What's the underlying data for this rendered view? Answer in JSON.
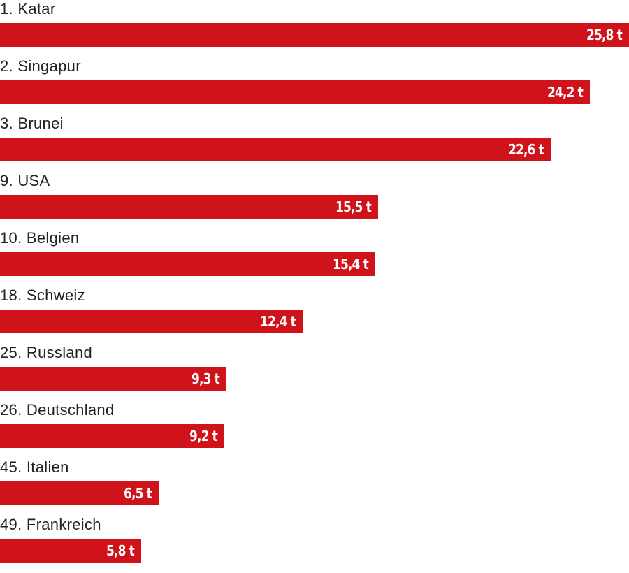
{
  "chart_data": {
    "type": "bar",
    "orientation": "horizontal",
    "categories": [
      "1. Katar",
      "2. Singapur",
      "3. Brunei",
      "9. USA",
      "10. Belgien",
      "18. Schweiz",
      "25. Russland",
      "26. Deutschland",
      "45. Italien",
      "49. Frankreich"
    ],
    "values": [
      25.8,
      24.2,
      22.6,
      15.5,
      15.4,
      12.4,
      9.3,
      9.2,
      6.5,
      5.8
    ],
    "value_labels": [
      "25,8 t",
      "24,2 t",
      "22,6 t",
      "15,5 t",
      "15,4 t",
      "12,4 t",
      "9,3 t",
      "9,2 t",
      "6,5 t",
      "5,8 t"
    ],
    "unit": "t",
    "xlim": [
      0,
      25.8
    ],
    "grid": false,
    "bar_color": "#d0121a"
  }
}
